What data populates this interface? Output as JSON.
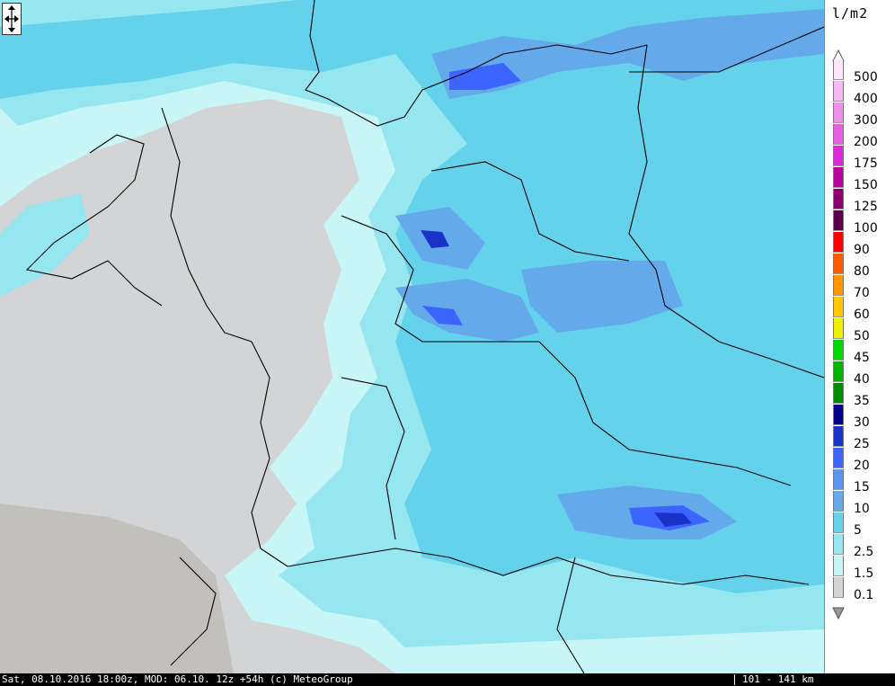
{
  "units": "l/m2",
  "legend": [
    {
      "label": "500",
      "color": "#fbe6fb"
    },
    {
      "label": "400",
      "color": "#f6b9f4"
    },
    {
      "label": "300",
      "color": "#ef8feb"
    },
    {
      "label": "200",
      "color": "#e660e2"
    },
    {
      "label": "175",
      "color": "#dc2ad8"
    },
    {
      "label": "150",
      "color": "#b5009e"
    },
    {
      "label": "125",
      "color": "#8a006e"
    },
    {
      "label": "100",
      "color": "#5c004a"
    },
    {
      "label": "90",
      "color": "#ff0000"
    },
    {
      "label": "80",
      "color": "#ff5a00"
    },
    {
      "label": "70",
      "color": "#ff9600"
    },
    {
      "label": "60",
      "color": "#ffc800"
    },
    {
      "label": "50",
      "color": "#f0f000"
    },
    {
      "label": "45",
      "color": "#00d900"
    },
    {
      "label": "40",
      "color": "#00b400"
    },
    {
      "label": "35",
      "color": "#008c00"
    },
    {
      "label": "30",
      "color": "#00008b"
    },
    {
      "label": "25",
      "color": "#1a32c8"
    },
    {
      "label": "20",
      "color": "#3c64ff"
    },
    {
      "label": "15",
      "color": "#5a96f0"
    },
    {
      "label": "10",
      "color": "#64aaeb"
    },
    {
      "label": "5",
      "color": "#64d2eb"
    },
    {
      "label": "2.5",
      "color": "#96e6f0"
    },
    {
      "label": "1.5",
      "color": "#c8f5f5"
    },
    {
      "label": "0.1",
      "color": "#d3d4d5"
    }
  ],
  "footer": {
    "left": "Sat, 08.10.2016 18:00z, MOD: 06.10. 12z +54h (c) MeteoGroup",
    "right": "101 - 141 km"
  },
  "map_colors": {
    "land_dry": "#d3d4d5",
    "mountain": "#c2c0bd",
    "light": "#c8f5f5",
    "cyan": "#96e6f0",
    "mid": "#64d2eb",
    "blue1": "#64aaeb",
    "blue2": "#3c64ff",
    "blue3": "#1a32c8",
    "border": "#000000"
  }
}
